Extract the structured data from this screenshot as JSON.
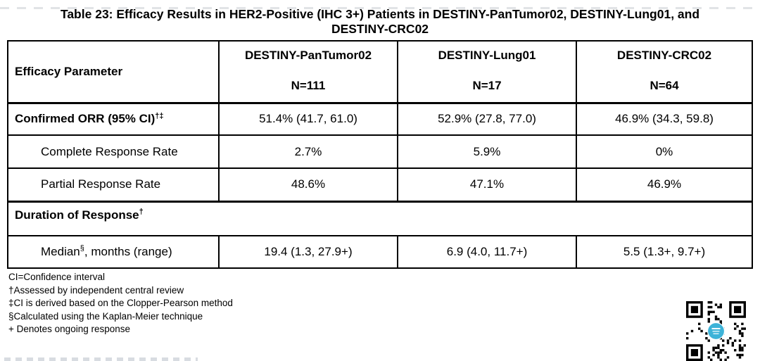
{
  "title": {
    "line1": "Table 23: Efficacy Results in HER2-Positive (IHC 3+) Patients in DESTINY-PanTumor02, DESTINY-Lung01, and",
    "line2": "DESTINY-CRC02"
  },
  "table": {
    "header": {
      "param_label": "Efficacy Parameter",
      "studies": [
        {
          "name": "DESTINY-PanTumor02",
          "n": "N=111"
        },
        {
          "name": "DESTINY-Lung01",
          "n": "N=17"
        },
        {
          "name": "DESTINY-CRC02",
          "n": "N=64"
        }
      ]
    },
    "orr": {
      "label": "Confirmed ORR (95% CI)",
      "sup": "†‡",
      "values": [
        "51.4% (41.7, 61.0)",
        "52.9% (27.8, 77.0)",
        "46.9% (34.3, 59.8)"
      ]
    },
    "complete": {
      "label": "Complete Response Rate",
      "values": [
        "2.7%",
        "5.9%",
        "0%"
      ]
    },
    "partial": {
      "label": "Partial Response Rate",
      "values": [
        "48.6%",
        "47.1%",
        "46.9%"
      ]
    },
    "duration": {
      "label": "Duration of Response",
      "sup": "†"
    },
    "median": {
      "label": "Median",
      "sup": "§",
      "label_rest": ", months (range)",
      "values": [
        "19.4 (1.3, 27.9+)",
        "6.9 (4.0, 11.7+)",
        "5.5 (1.3+, 9.7+)"
      ]
    }
  },
  "footnotes": [
    "CI=Confidence interval",
    "†Assessed by independent central review",
    "‡CI is derived based on the Clopper-Pearson method",
    "§Calculated using the Kaplan-Meier technique",
    "+ Denotes ongoing response"
  ],
  "qr": {
    "logo_color": "#3db3d8"
  }
}
